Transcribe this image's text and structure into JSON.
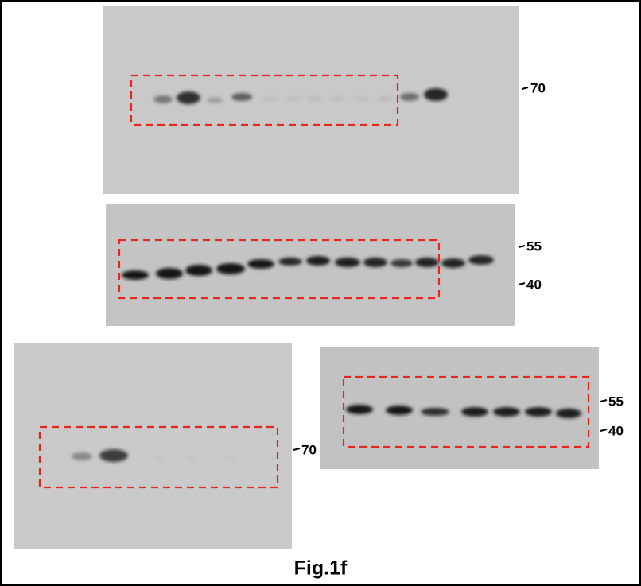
{
  "panels": [
    {
      "markers": [
        "70"
      ]
    },
    {
      "markers": [
        "55",
        "40"
      ]
    },
    {
      "markers": [
        "70"
      ]
    },
    {
      "markers": [
        "55",
        "40"
      ]
    }
  ],
  "caption": "Fig.1f"
}
